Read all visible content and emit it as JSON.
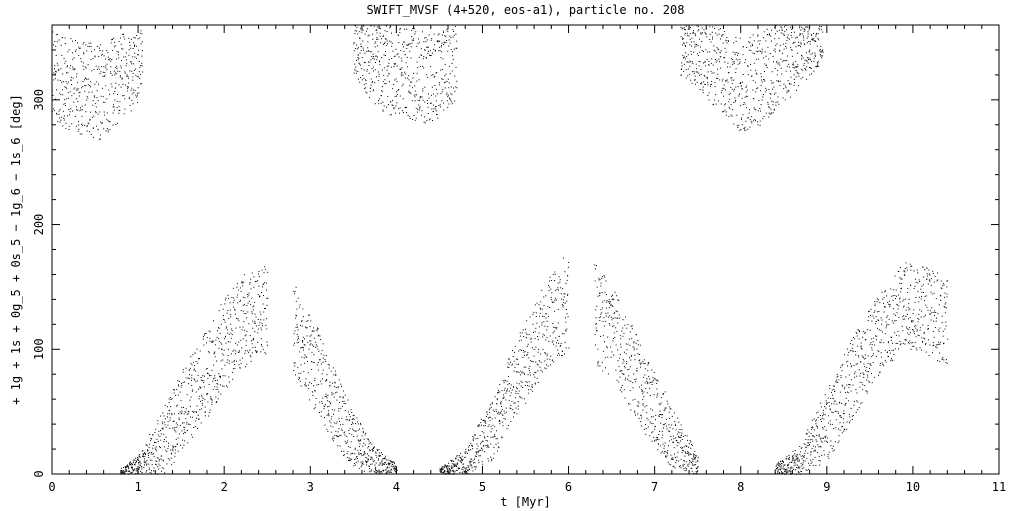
{
  "chart_data": {
    "type": "scatter",
    "title": "SWIFT_MVSF (4+520, eos-a1), particle no. 208",
    "xlabel": "t [Myr]",
    "ylabel": "+ 1g + 1s + 0g_5 + 0s_5 − 1g_6 − 1s_6 [deg]",
    "xlim": [
      0,
      11
    ],
    "ylim": [
      0,
      360
    ],
    "xticks": [
      0,
      1,
      2,
      3,
      4,
      5,
      6,
      7,
      8,
      9,
      10,
      11
    ],
    "yticks": [
      0,
      100,
      200,
      300
    ],
    "point_color": "#000000",
    "series": [
      {
        "description": "sampled outline of the dense point cloud (points are wrapped modulo 360 deg)",
        "envelope": [
          {
            "t": 0.0,
            "low": 280,
            "high": 355,
            "segment": "top"
          },
          {
            "t": 0.55,
            "low": 268,
            "high": 345,
            "segment": "top"
          },
          {
            "t": 1.05,
            "low": 300,
            "high": 360,
            "segment": "top"
          },
          {
            "t": 0.8,
            "low": 0,
            "high": 5,
            "segment": "rise1"
          },
          {
            "t": 1.0,
            "low": 0,
            "high": 15,
            "segment": "rise1"
          },
          {
            "t": 1.3,
            "low": 0,
            "high": 55,
            "segment": "rise1"
          },
          {
            "t": 1.6,
            "low": 25,
            "high": 95,
            "segment": "rise1"
          },
          {
            "t": 1.9,
            "low": 55,
            "high": 130,
            "segment": "rise1"
          },
          {
            "t": 2.2,
            "low": 85,
            "high": 160,
            "segment": "rise1"
          },
          {
            "t": 2.5,
            "low": 95,
            "high": 170,
            "segment": "rise1"
          },
          {
            "t": 2.8,
            "low": 80,
            "high": 155,
            "segment": "fall1"
          },
          {
            "t": 3.1,
            "low": 45,
            "high": 115,
            "segment": "fall1"
          },
          {
            "t": 3.4,
            "low": 10,
            "high": 65,
            "segment": "fall1"
          },
          {
            "t": 3.7,
            "low": 0,
            "high": 25,
            "segment": "fall1"
          },
          {
            "t": 4.0,
            "low": 0,
            "high": 8,
            "segment": "fall1"
          },
          {
            "t": 3.5,
            "low": 320,
            "high": 360,
            "segment": "top"
          },
          {
            "t": 3.8,
            "low": 290,
            "high": 360,
            "segment": "top"
          },
          {
            "t": 4.1,
            "low": 285,
            "high": 360,
            "segment": "top"
          },
          {
            "t": 4.4,
            "low": 280,
            "high": 355,
            "segment": "top"
          },
          {
            "t": 4.7,
            "low": 300,
            "high": 360,
            "segment": "top"
          },
          {
            "t": 4.5,
            "low": 0,
            "high": 5,
            "segment": "rise2"
          },
          {
            "t": 4.8,
            "low": 0,
            "high": 20,
            "segment": "rise2"
          },
          {
            "t": 5.1,
            "low": 10,
            "high": 60,
            "segment": "rise2"
          },
          {
            "t": 5.4,
            "low": 45,
            "high": 110,
            "segment": "rise2"
          },
          {
            "t": 5.7,
            "low": 80,
            "high": 150,
            "segment": "rise2"
          },
          {
            "t": 6.0,
            "low": 100,
            "high": 180,
            "segment": "rise2"
          },
          {
            "t": 6.3,
            "low": 90,
            "high": 170,
            "segment": "fall2"
          },
          {
            "t": 6.6,
            "low": 65,
            "high": 140,
            "segment": "fall2"
          },
          {
            "t": 6.9,
            "low": 30,
            "high": 95,
            "segment": "fall2"
          },
          {
            "t": 7.2,
            "low": 5,
            "high": 55,
            "segment": "fall2"
          },
          {
            "t": 7.5,
            "low": 0,
            "high": 15,
            "segment": "fall2"
          },
          {
            "t": 7.3,
            "low": 320,
            "high": 360,
            "segment": "top"
          },
          {
            "t": 7.7,
            "low": 295,
            "high": 360,
            "segment": "top"
          },
          {
            "t": 8.05,
            "low": 270,
            "high": 350,
            "segment": "top"
          },
          {
            "t": 8.4,
            "low": 290,
            "high": 360,
            "segment": "top"
          },
          {
            "t": 8.95,
            "low": 330,
            "high": 360,
            "segment": "top"
          },
          {
            "t": 8.4,
            "low": 0,
            "high": 8,
            "segment": "rise3"
          },
          {
            "t": 8.7,
            "low": 0,
            "high": 25,
            "segment": "rise3"
          },
          {
            "t": 9.0,
            "low": 10,
            "high": 70,
            "segment": "rise3"
          },
          {
            "t": 9.3,
            "low": 45,
            "high": 110,
            "segment": "rise3"
          },
          {
            "t": 9.6,
            "low": 80,
            "high": 145,
            "segment": "rise3"
          },
          {
            "t": 9.9,
            "low": 100,
            "high": 170,
            "segment": "rise3"
          },
          {
            "t": 10.2,
            "low": 95,
            "high": 165,
            "segment": "rise3"
          },
          {
            "t": 10.4,
            "low": 85,
            "high": 160,
            "segment": "rise3"
          }
        ]
      }
    ],
    "grid": false,
    "legend": "none"
  }
}
